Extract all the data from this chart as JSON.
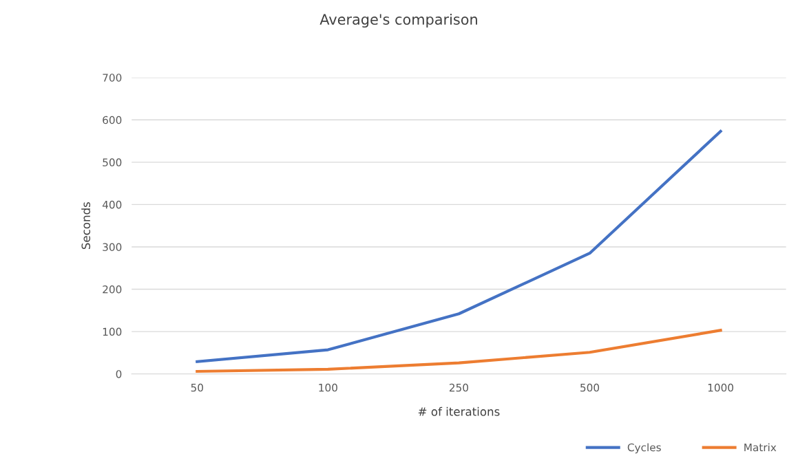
{
  "chart_data": {
    "type": "line",
    "title": "Average's comparison",
    "xlabel": "# of iterations",
    "ylabel": "Seconds",
    "categories": [
      "50",
      "100",
      "250",
      "500",
      "1000"
    ],
    "series": [
      {
        "name": "Cycles",
        "color": "#4472c4",
        "values": [
          29,
          57,
          142,
          285,
          573
        ]
      },
      {
        "name": "Matrix",
        "color": "#ed7d31",
        "values": [
          6,
          11,
          26,
          51,
          103
        ]
      }
    ],
    "ylim": [
      0,
      700
    ],
    "yticks": [
      0,
      100,
      200,
      300,
      400,
      500,
      600,
      700
    ],
    "grid": "y",
    "legend": "bottom right",
    "marker": "none",
    "line_style": "solid"
  }
}
